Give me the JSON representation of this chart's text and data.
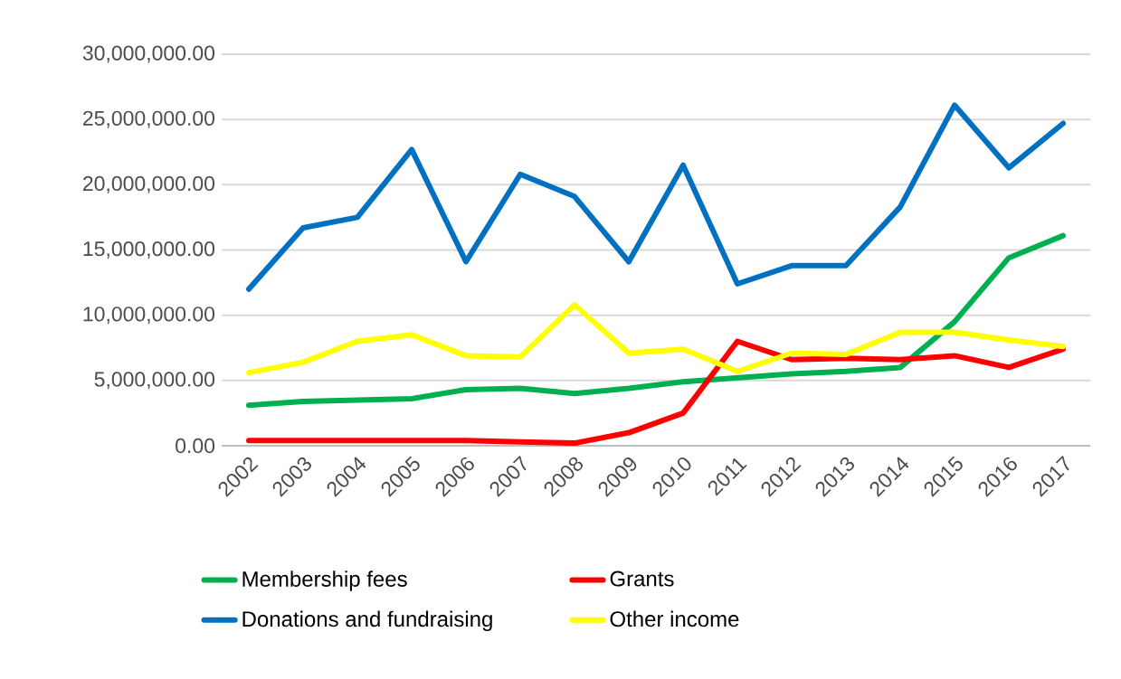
{
  "chart_data": {
    "type": "line",
    "categories": [
      "2002",
      "2003",
      "2004",
      "2005",
      "2006",
      "2007",
      "2008",
      "2009",
      "2010",
      "2011",
      "2012",
      "2013",
      "2014",
      "2015",
      "2016",
      "2017"
    ],
    "series": [
      {
        "name": "Membership fees",
        "color": "#00b050",
        "values": [
          3100000,
          3400000,
          3500000,
          3600000,
          4300000,
          4400000,
          4000000,
          4400000,
          4900000,
          5200000,
          5500000,
          5700000,
          6000000,
          9500000,
          14400000,
          16100000
        ]
      },
      {
        "name": "Grants",
        "color": "#ff0000",
        "values": [
          400000,
          400000,
          400000,
          400000,
          400000,
          300000,
          200000,
          1000000,
          2500000,
          8000000,
          6600000,
          6700000,
          6600000,
          6900000,
          6000000,
          7400000
        ]
      },
      {
        "name": "Donations and fundraising",
        "color": "#0070c0",
        "values": [
          12000000,
          16700000,
          17500000,
          22700000,
          14100000,
          20800000,
          19100000,
          14100000,
          21500000,
          12400000,
          13800000,
          13800000,
          18300000,
          26100000,
          21300000,
          24700000
        ]
      },
      {
        "name": "Other income",
        "color": "#ffff00",
        "values": [
          5600000,
          6400000,
          8000000,
          8500000,
          6900000,
          6800000,
          10800000,
          7100000,
          7400000,
          5700000,
          7100000,
          7000000,
          8700000,
          8700000,
          8100000,
          7600000
        ]
      }
    ],
    "ylim": [
      0,
      30000000
    ],
    "yticks": [
      {
        "value": 0,
        "label": "0.00"
      },
      {
        "value": 5000000,
        "label": "5,000,000.00"
      },
      {
        "value": 10000000,
        "label": "10,000,000.00"
      },
      {
        "value": 15000000,
        "label": "15,000,000.00"
      },
      {
        "value": 20000000,
        "label": "20,000,000.00"
      },
      {
        "value": 25000000,
        "label": "25,000,000.00"
      },
      {
        "value": 30000000,
        "label": "30,000,000.00"
      }
    ],
    "grid": "y",
    "legend": "bottom",
    "marker": "none",
    "line_style": "solid"
  }
}
